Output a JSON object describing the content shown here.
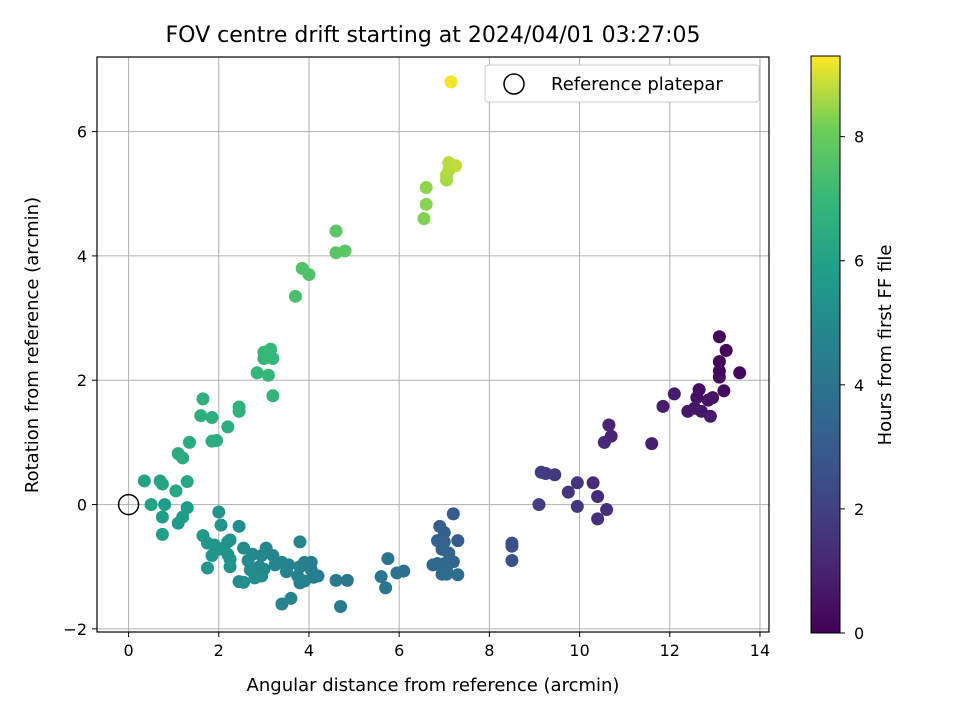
{
  "chart_data": {
    "type": "scatter",
    "title": "FOV centre drift starting at 2024/04/01 03:27:05",
    "xlabel": "Angular distance from reference (arcmin)",
    "ylabel": "Rotation from reference (arcmin)",
    "xlim": [
      -0.7,
      14.2
    ],
    "ylim": [
      -2.05,
      7.2
    ],
    "xticks": [
      0,
      2,
      4,
      6,
      8,
      10,
      12,
      14
    ],
    "yticks": [
      -2,
      0,
      2,
      4,
      6
    ],
    "grid": true,
    "legend": {
      "placement": "top-right",
      "entries": [
        "Reference platepar"
      ]
    },
    "colorbar": {
      "label": "Hours from first FF file",
      "range": [
        0,
        9.3
      ],
      "ticks": [
        0,
        2,
        4,
        6,
        8
      ],
      "colormap": "viridis"
    },
    "reference_point": {
      "x": 0,
      "y": 0
    },
    "points": [
      {
        "x": 13.1,
        "y": 2.7,
        "c": 0.05
      },
      {
        "x": 13.25,
        "y": 2.48,
        "c": 0.1
      },
      {
        "x": 13.1,
        "y": 2.3,
        "c": 0.15
      },
      {
        "x": 13.1,
        "y": 2.15,
        "c": 0.2
      },
      {
        "x": 13.55,
        "y": 2.12,
        "c": 0.25
      },
      {
        "x": 13.1,
        "y": 2.05,
        "c": 0.3
      },
      {
        "x": 13.2,
        "y": 1.83,
        "c": 0.35
      },
      {
        "x": 12.65,
        "y": 1.85,
        "c": 0.4
      },
      {
        "x": 12.6,
        "y": 1.72,
        "c": 0.45
      },
      {
        "x": 12.95,
        "y": 1.72,
        "c": 0.5
      },
      {
        "x": 12.85,
        "y": 1.68,
        "c": 0.55
      },
      {
        "x": 12.55,
        "y": 1.55,
        "c": 0.6
      },
      {
        "x": 12.7,
        "y": 1.5,
        "c": 0.65
      },
      {
        "x": 12.4,
        "y": 1.5,
        "c": 0.7
      },
      {
        "x": 12.9,
        "y": 1.42,
        "c": 0.75
      },
      {
        "x": 12.1,
        "y": 1.78,
        "c": 0.8
      },
      {
        "x": 11.85,
        "y": 1.58,
        "c": 0.85
      },
      {
        "x": 11.6,
        "y": 0.98,
        "c": 0.95
      },
      {
        "x": 10.65,
        "y": 1.28,
        "c": 1.05
      },
      {
        "x": 10.7,
        "y": 1.1,
        "c": 1.1
      },
      {
        "x": 10.55,
        "y": 1.0,
        "c": 1.15
      },
      {
        "x": 10.3,
        "y": 0.35,
        "c": 1.3
      },
      {
        "x": 10.4,
        "y": 0.13,
        "c": 1.35
      },
      {
        "x": 10.6,
        "y": -0.08,
        "c": 1.4
      },
      {
        "x": 10.4,
        "y": -0.23,
        "c": 1.45
      },
      {
        "x": 9.95,
        "y": 0.35,
        "c": 1.55
      },
      {
        "x": 9.75,
        "y": 0.2,
        "c": 1.6
      },
      {
        "x": 9.95,
        "y": -0.03,
        "c": 1.65
      },
      {
        "x": 9.45,
        "y": 0.48,
        "c": 1.75
      },
      {
        "x": 9.25,
        "y": 0.5,
        "c": 1.8
      },
      {
        "x": 9.15,
        "y": 0.52,
        "c": 1.85
      },
      {
        "x": 9.1,
        "y": 0.0,
        "c": 1.9
      },
      {
        "x": 8.5,
        "y": -0.62,
        "c": 2.5
      },
      {
        "x": 8.5,
        "y": -0.67,
        "c": 2.55
      },
      {
        "x": 8.5,
        "y": -0.9,
        "c": 2.6
      },
      {
        "x": 7.2,
        "y": -0.15,
        "c": 3.0
      },
      {
        "x": 7.3,
        "y": -0.58,
        "c": 3.05
      },
      {
        "x": 6.9,
        "y": -0.35,
        "c": 3.1
      },
      {
        "x": 7.0,
        "y": -0.45,
        "c": 3.15
      },
      {
        "x": 6.85,
        "y": -0.58,
        "c": 3.2
      },
      {
        "x": 7.0,
        "y": -0.6,
        "c": 3.25
      },
      {
        "x": 6.95,
        "y": -0.72,
        "c": 3.3
      },
      {
        "x": 7.1,
        "y": -0.78,
        "c": 3.35
      },
      {
        "x": 7.2,
        "y": -0.92,
        "c": 3.4
      },
      {
        "x": 6.85,
        "y": -0.95,
        "c": 3.45
      },
      {
        "x": 7.0,
        "y": -0.95,
        "c": 3.5
      },
      {
        "x": 6.75,
        "y": -0.97,
        "c": 3.55
      },
      {
        "x": 7.05,
        "y": -1.05,
        "c": 3.6
      },
      {
        "x": 6.95,
        "y": -1.12,
        "c": 3.65
      },
      {
        "x": 7.05,
        "y": -1.12,
        "c": 3.68
      },
      {
        "x": 7.3,
        "y": -1.13,
        "c": 3.7
      },
      {
        "x": 6.1,
        "y": -1.07,
        "c": 3.9
      },
      {
        "x": 5.95,
        "y": -1.1,
        "c": 3.95
      },
      {
        "x": 5.75,
        "y": -0.87,
        "c": 4.0
      },
      {
        "x": 5.6,
        "y": -1.16,
        "c": 4.05
      },
      {
        "x": 5.7,
        "y": -1.34,
        "c": 4.1
      },
      {
        "x": 4.85,
        "y": -1.22,
        "c": 4.2
      },
      {
        "x": 4.6,
        "y": -1.22,
        "c": 4.25
      },
      {
        "x": 4.7,
        "y": -1.64,
        "c": 4.3
      },
      {
        "x": 4.2,
        "y": -1.15,
        "c": 4.35
      },
      {
        "x": 4.1,
        "y": -1.17,
        "c": 4.4
      },
      {
        "x": 4.05,
        "y": -0.93,
        "c": 4.45
      },
      {
        "x": 3.9,
        "y": -0.93,
        "c": 4.5
      },
      {
        "x": 4.05,
        "y": -1.05,
        "c": 4.52
      },
      {
        "x": 3.8,
        "y": -1.0,
        "c": 4.55
      },
      {
        "x": 3.75,
        "y": -1.15,
        "c": 4.57
      },
      {
        "x": 3.9,
        "y": -1.23,
        "c": 4.6
      },
      {
        "x": 3.8,
        "y": -1.26,
        "c": 4.62
      },
      {
        "x": 3.55,
        "y": -0.97,
        "c": 4.65
      },
      {
        "x": 3.4,
        "y": -0.93,
        "c": 4.67
      },
      {
        "x": 3.5,
        "y": -1.08,
        "c": 4.7
      },
      {
        "x": 3.4,
        "y": -1.6,
        "c": 4.72
      },
      {
        "x": 3.6,
        "y": -1.51,
        "c": 4.75
      },
      {
        "x": 3.25,
        "y": -0.97,
        "c": 4.77
      },
      {
        "x": 3.2,
        "y": -0.82,
        "c": 4.8
      },
      {
        "x": 3.8,
        "y": -0.6,
        "c": 4.82
      },
      {
        "x": 3.05,
        "y": -0.7,
        "c": 4.85
      },
      {
        "x": 2.95,
        "y": -0.82,
        "c": 4.88
      },
      {
        "x": 2.9,
        "y": -1.0,
        "c": 4.9
      },
      {
        "x": 3.0,
        "y": -1.04,
        "c": 4.92
      },
      {
        "x": 2.8,
        "y": -1.07,
        "c": 4.95
      },
      {
        "x": 2.95,
        "y": -1.15,
        "c": 4.97
      },
      {
        "x": 2.75,
        "y": -0.8,
        "c": 5.0
      },
      {
        "x": 2.65,
        "y": -0.9,
        "c": 5.02
      },
      {
        "x": 2.55,
        "y": -0.7,
        "c": 5.05
      },
      {
        "x": 2.7,
        "y": -1.05,
        "c": 5.07
      },
      {
        "x": 2.8,
        "y": -1.18,
        "c": 5.1
      },
      {
        "x": 2.45,
        "y": -1.24,
        "c": 5.12
      },
      {
        "x": 2.55,
        "y": -1.25,
        "c": 5.15
      },
      {
        "x": 2.45,
        "y": -0.35,
        "c": 5.2
      },
      {
        "x": 2.2,
        "y": -0.6,
        "c": 5.25
      },
      {
        "x": 2.1,
        "y": -0.7,
        "c": 5.27
      },
      {
        "x": 2.25,
        "y": -0.57,
        "c": 5.3
      },
      {
        "x": 2.2,
        "y": -0.8,
        "c": 5.32
      },
      {
        "x": 2.25,
        "y": -0.88,
        "c": 5.35
      },
      {
        "x": 2.25,
        "y": -1.0,
        "c": 5.37
      },
      {
        "x": 2.05,
        "y": -0.33,
        "c": 5.4
      },
      {
        "x": 2.0,
        "y": -0.12,
        "c": 5.42
      },
      {
        "x": 1.9,
        "y": -0.65,
        "c": 5.45
      },
      {
        "x": 2.0,
        "y": -0.72,
        "c": 5.47
      },
      {
        "x": 1.85,
        "y": -0.82,
        "c": 5.5
      },
      {
        "x": 1.75,
        "y": -0.62,
        "c": 5.52
      },
      {
        "x": 1.65,
        "y": -0.5,
        "c": 5.55
      },
      {
        "x": 1.75,
        "y": -1.02,
        "c": 5.57
      },
      {
        "x": 1.3,
        "y": -0.05,
        "c": 5.7
      },
      {
        "x": 1.2,
        "y": -0.2,
        "c": 5.72
      },
      {
        "x": 1.1,
        "y": -0.3,
        "c": 5.75
      },
      {
        "x": 0.8,
        "y": 0.0,
        "c": 5.85
      },
      {
        "x": 0.75,
        "y": -0.2,
        "c": 5.87
      },
      {
        "x": 0.75,
        "y": -0.48,
        "c": 5.9
      },
      {
        "x": 0.5,
        "y": 0.0,
        "c": 6.0
      },
      {
        "x": 0.35,
        "y": 0.38,
        "c": 6.05
      },
      {
        "x": 0.7,
        "y": 0.38,
        "c": 6.1
      },
      {
        "x": 0.75,
        "y": 0.33,
        "c": 6.15
      },
      {
        "x": 1.05,
        "y": 0.22,
        "c": 6.2
      },
      {
        "x": 1.3,
        "y": 0.37,
        "c": 6.25
      },
      {
        "x": 1.1,
        "y": 0.82,
        "c": 6.35
      },
      {
        "x": 1.2,
        "y": 0.75,
        "c": 6.4
      },
      {
        "x": 1.35,
        "y": 1.0,
        "c": 6.45
      },
      {
        "x": 1.85,
        "y": 1.02,
        "c": 6.5
      },
      {
        "x": 1.95,
        "y": 1.03,
        "c": 6.52
      },
      {
        "x": 2.2,
        "y": 1.25,
        "c": 6.55
      },
      {
        "x": 1.6,
        "y": 1.43,
        "c": 6.6
      },
      {
        "x": 1.85,
        "y": 1.4,
        "c": 6.62
      },
      {
        "x": 1.65,
        "y": 1.7,
        "c": 6.65
      },
      {
        "x": 2.45,
        "y": 1.57,
        "c": 6.7
      },
      {
        "x": 2.45,
        "y": 1.5,
        "c": 6.72
      },
      {
        "x": 3.2,
        "y": 1.75,
        "c": 6.8
      },
      {
        "x": 2.85,
        "y": 2.12,
        "c": 6.9
      },
      {
        "x": 3.1,
        "y": 2.08,
        "c": 6.92
      },
      {
        "x": 3.0,
        "y": 2.35,
        "c": 6.95
      },
      {
        "x": 3.2,
        "y": 2.35,
        "c": 6.97
      },
      {
        "x": 3.0,
        "y": 2.45,
        "c": 7.0
      },
      {
        "x": 3.15,
        "y": 2.5,
        "c": 7.02
      },
      {
        "x": 3.7,
        "y": 3.35,
        "c": 7.4
      },
      {
        "x": 3.85,
        "y": 3.8,
        "c": 7.5
      },
      {
        "x": 4.0,
        "y": 3.7,
        "c": 7.55
      },
      {
        "x": 4.6,
        "y": 4.05,
        "c": 7.7
      },
      {
        "x": 4.8,
        "y": 4.08,
        "c": 7.72
      },
      {
        "x": 4.6,
        "y": 4.4,
        "c": 7.75
      },
      {
        "x": 6.55,
        "y": 4.6,
        "c": 8.3
      },
      {
        "x": 6.6,
        "y": 4.83,
        "c": 8.35
      },
      {
        "x": 6.6,
        "y": 5.1,
        "c": 8.4
      },
      {
        "x": 7.05,
        "y": 5.22,
        "c": 8.6
      },
      {
        "x": 7.05,
        "y": 5.3,
        "c": 8.65
      },
      {
        "x": 7.1,
        "y": 5.38,
        "c": 8.7
      },
      {
        "x": 7.1,
        "y": 5.5,
        "c": 8.75
      },
      {
        "x": 7.25,
        "y": 5.45,
        "c": 8.8
      },
      {
        "x": 7.15,
        "y": 6.8,
        "c": 9.2
      }
    ]
  }
}
